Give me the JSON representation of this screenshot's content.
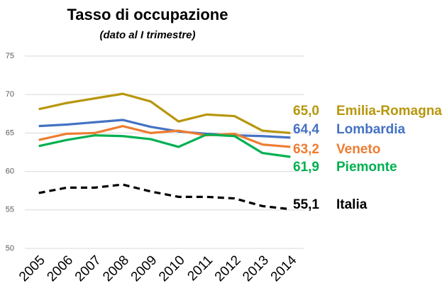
{
  "chart_data": {
    "type": "line",
    "title": "Tasso di occupazione",
    "subtitle": "(dato al I trimestre)",
    "categories": [
      "2005",
      "2006",
      "2007",
      "2008",
      "2009",
      "2010",
      "2011",
      "2012",
      "2013",
      "2014"
    ],
    "ylim": [
      50,
      75
    ],
    "yticks": [
      50,
      55,
      60,
      65,
      70,
      75
    ],
    "grid": true,
    "series": [
      {
        "name": "Emilia-Romagna",
        "color": "#b8960c",
        "values": [
          68.1,
          68.9,
          69.5,
          70.1,
          69.1,
          66.5,
          67.4,
          67.2,
          65.3,
          65.0
        ],
        "value_labels": [
          null,
          null,
          null,
          null,
          null,
          null,
          null,
          null,
          null,
          "65,0"
        ]
      },
      {
        "name": "Lombardia",
        "color": "#4472c4",
        "values": [
          65.9,
          66.1,
          66.4,
          66.7,
          65.8,
          65.2,
          64.9,
          64.7,
          64.6,
          64.4
        ],
        "value_labels": [
          null,
          null,
          null,
          null,
          null,
          null,
          null,
          null,
          null,
          "64,4"
        ]
      },
      {
        "name": "Veneto",
        "color": "#ed7d31",
        "values": [
          64.1,
          64.9,
          65.0,
          65.9,
          65.0,
          65.3,
          64.7,
          64.9,
          63.5,
          63.2
        ],
        "value_labels": [
          null,
          null,
          null,
          null,
          null,
          null,
          null,
          null,
          null,
          "63,2"
        ]
      },
      {
        "name": "Piemonte",
        "color": "#00b050",
        "values": [
          63.3,
          64.1,
          64.7,
          64.6,
          64.2,
          63.2,
          64.8,
          64.6,
          62.4,
          61.9
        ],
        "value_labels": [
          null,
          null,
          null,
          null,
          null,
          null,
          null,
          null,
          null,
          "61,9"
        ]
      },
      {
        "name": "Italia",
        "color": "#000000",
        "dashed": true,
        "values": [
          57.2,
          57.9,
          57.9,
          58.3,
          57.4,
          56.7,
          56.7,
          56.5,
          55.5,
          55.1
        ],
        "value_labels": [
          null,
          null,
          null,
          null,
          null,
          null,
          null,
          null,
          null,
          "55,1"
        ]
      }
    ]
  }
}
